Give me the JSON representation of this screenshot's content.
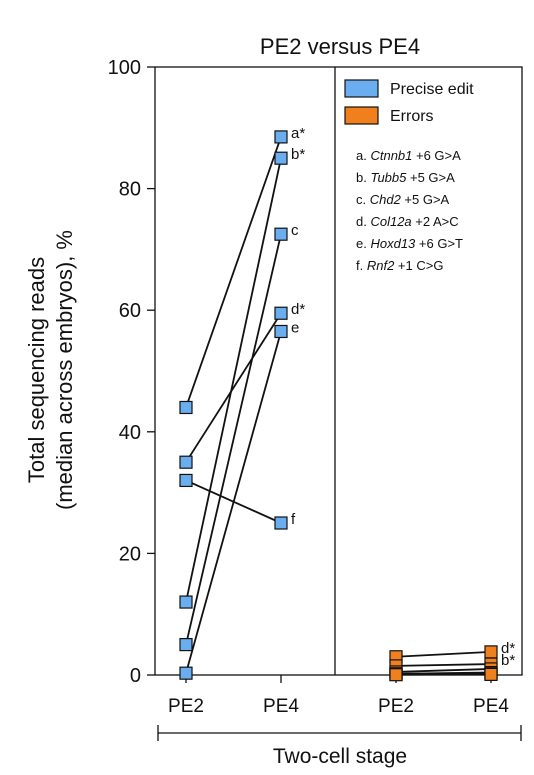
{
  "chart_data": {
    "type": "scatter",
    "title": "PE2 versus PE4",
    "ylabel_line1": "Total sequencing reads",
    "ylabel_line2": "(median across embryos), %",
    "xlabel": "Two-cell stage",
    "ylim": [
      0,
      100
    ],
    "yticks": [
      0,
      20,
      40,
      60,
      80,
      100
    ],
    "panels": [
      {
        "categories": [
          "PE2",
          "PE4"
        ]
      },
      {
        "categories": [
          "PE2",
          "PE4"
        ]
      }
    ],
    "legend": [
      {
        "name": "Precise edit",
        "color": "#6aaef0"
      },
      {
        "name": "Errors",
        "color": "#f07f1e"
      }
    ],
    "target_labels": [
      {
        "letter": "a.",
        "gene": "Ctnnb1",
        "edit": "+6 G>A"
      },
      {
        "letter": "b.",
        "gene": "Tubb5",
        "edit": "+5 G>A"
      },
      {
        "letter": "c.",
        "gene": "Chd2",
        "edit": "+5 G>A"
      },
      {
        "letter": "d.",
        "gene": "Col12a",
        "edit": "+2 A>C"
      },
      {
        "letter": "e.",
        "gene": "Hoxd13",
        "edit": "+6 G>T"
      },
      {
        "letter": "f.",
        "gene": "Rnf2",
        "edit": "+1 C>G"
      }
    ],
    "series": [
      {
        "group": "Precise edit",
        "label": "a*",
        "values": [
          44,
          88.5
        ]
      },
      {
        "group": "Precise edit",
        "label": "b*",
        "values": [
          12,
          85
        ]
      },
      {
        "group": "Precise edit",
        "label": "c",
        "values": [
          5,
          72.5
        ]
      },
      {
        "group": "Precise edit",
        "label": "d*",
        "values": [
          35,
          59.5
        ]
      },
      {
        "group": "Precise edit",
        "label": "e",
        "values": [
          0.3,
          56.5
        ]
      },
      {
        "group": "Precise edit",
        "label": "f",
        "values": [
          32,
          25
        ]
      },
      {
        "group": "Errors",
        "label": "d*",
        "values": [
          3,
          3.8
        ]
      },
      {
        "group": "Errors",
        "label": "b*",
        "values": [
          1.5,
          1.8
        ]
      },
      {
        "group": "Errors",
        "label": "",
        "values": [
          0.5,
          1.0
        ]
      },
      {
        "group": "Errors",
        "label": "",
        "values": [
          0.2,
          0.4
        ]
      },
      {
        "group": "Errors",
        "label": "",
        "values": [
          0.1,
          0.2
        ]
      },
      {
        "group": "Errors",
        "label": "",
        "values": [
          0.05,
          0.1
        ]
      }
    ],
    "grid": false,
    "legend_position": "top-right"
  },
  "colors": {
    "precise_fill": "#6aaef0",
    "errors_fill": "#f07f1e",
    "stroke": "#111111"
  }
}
